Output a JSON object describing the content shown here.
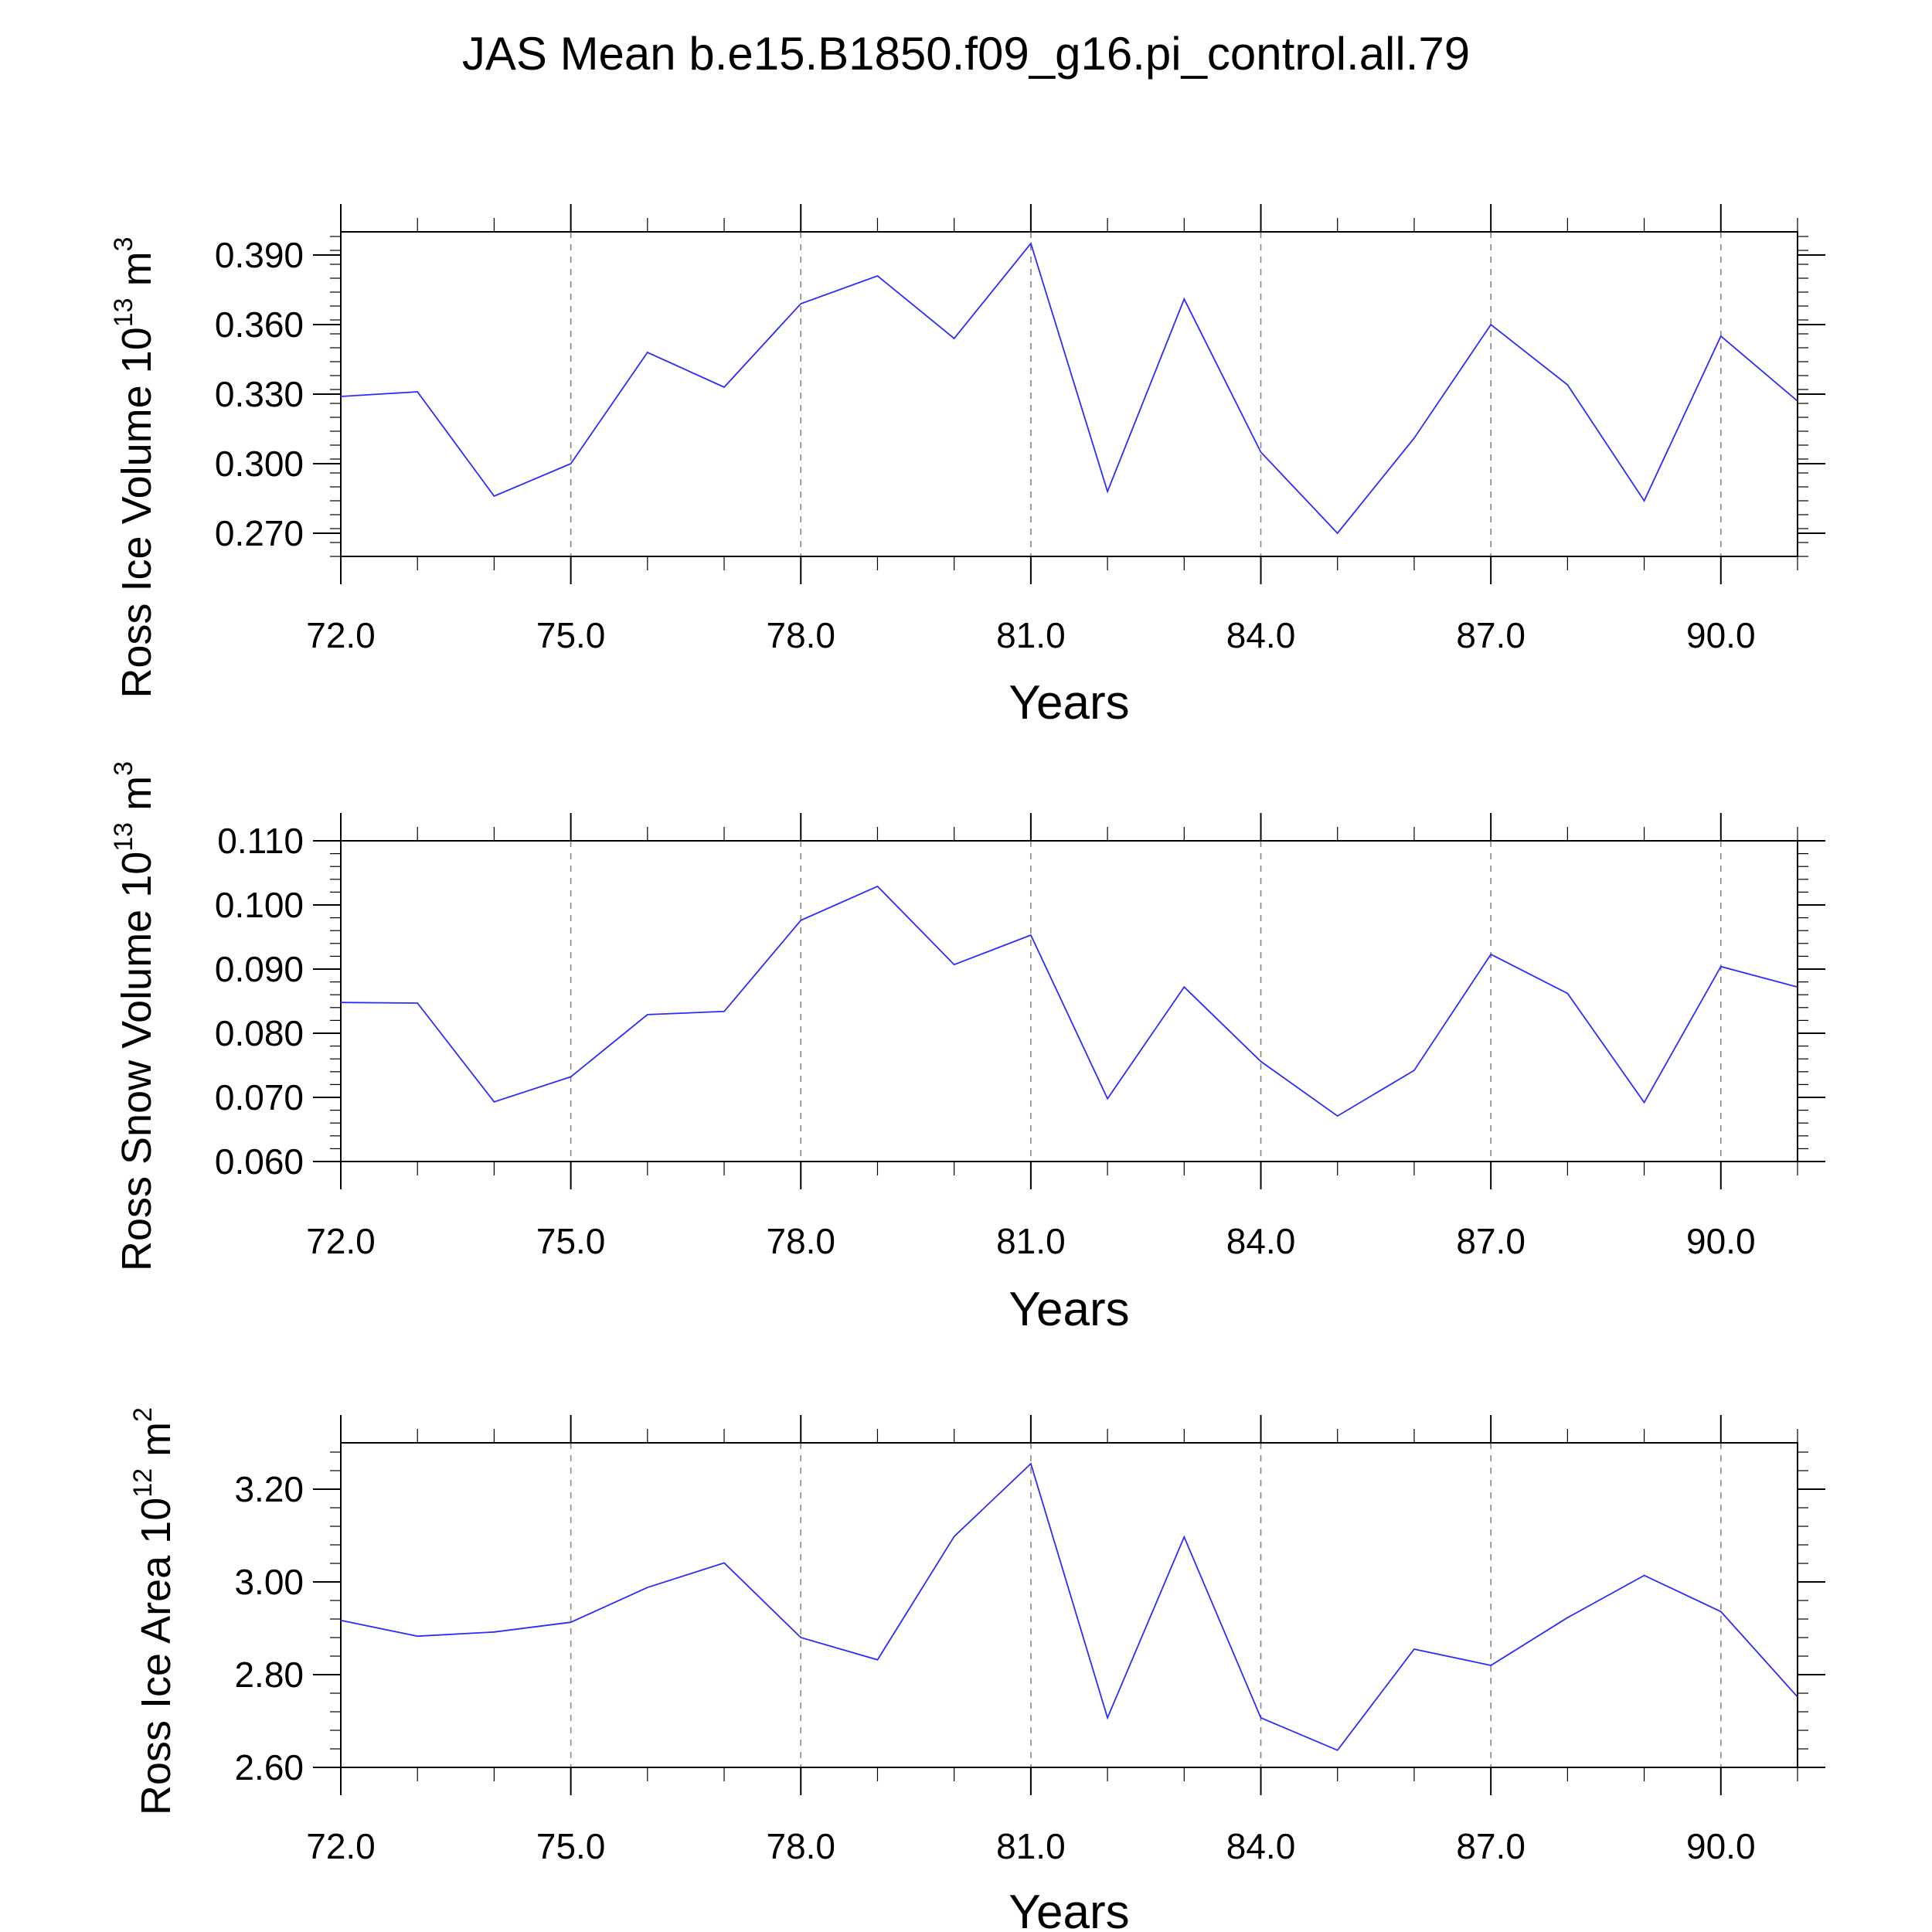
{
  "title": "JAS Mean b.e15.B1850.f09_g16.pi_control.all.79",
  "chart_data": [
    {
      "type": "line",
      "xlabel": "Years",
      "ylabel": "Ross Ice Volume 10",
      "ylabel_exp": "13",
      "ylabel_unit": " m",
      "ylabel_unit_exp": "3",
      "xlim": [
        72,
        91
      ],
      "ylim": [
        0.26,
        0.4
      ],
      "xticks": [
        72,
        75,
        78,
        81,
        84,
        87,
        90
      ],
      "xtick_labels": [
        "72.0",
        "75.0",
        "78.0",
        "81.0",
        "84.0",
        "87.0",
        "90.0"
      ],
      "yticks": [
        0.27,
        0.3,
        0.33,
        0.36,
        0.39
      ],
      "ytick_labels": [
        "0.270",
        "0.300",
        "0.330",
        "0.360",
        "0.390"
      ],
      "grid": "x-dashed",
      "series": [
        {
          "name": "Ross Ice Volume",
          "color": "#2b2bff",
          "x": [
            72,
            73,
            74,
            75,
            76,
            77,
            78,
            79,
            80,
            81,
            82,
            83,
            84,
            85,
            86,
            87,
            88,
            89,
            90,
            91
          ],
          "values": [
            0.329,
            0.331,
            0.286,
            0.3,
            0.348,
            0.333,
            0.369,
            0.381,
            0.354,
            0.395,
            0.288,
            0.371,
            0.305,
            0.27,
            0.311,
            0.36,
            0.334,
            0.284,
            0.355,
            0.327
          ]
        }
      ]
    },
    {
      "type": "line",
      "xlabel": "Years",
      "ylabel": "Ross Snow Volume 10",
      "ylabel_exp": "13",
      "ylabel_unit": " m",
      "ylabel_unit_exp": "3",
      "xlim": [
        72,
        91
      ],
      "ylim": [
        0.06,
        0.11
      ],
      "xticks": [
        72,
        75,
        78,
        81,
        84,
        87,
        90
      ],
      "xtick_labels": [
        "72.0",
        "75.0",
        "78.0",
        "81.0",
        "84.0",
        "87.0",
        "90.0"
      ],
      "yticks": [
        0.06,
        0.07,
        0.08,
        0.09,
        0.1,
        0.11
      ],
      "ytick_labels": [
        "0.060",
        "0.070",
        "0.080",
        "0.090",
        "0.100",
        "0.110"
      ],
      "grid": "x-dashed",
      "series": [
        {
          "name": "Ross Snow Volume",
          "color": "#2b2bff",
          "x": [
            72,
            73,
            74,
            75,
            76,
            77,
            78,
            79,
            80,
            81,
            82,
            83,
            84,
            85,
            86,
            87,
            88,
            89,
            90,
            91
          ],
          "values": [
            0.0848,
            0.0847,
            0.0693,
            0.0732,
            0.0829,
            0.0834,
            0.0976,
            0.1029,
            0.0907,
            0.0953,
            0.0698,
            0.0872,
            0.0756,
            0.0671,
            0.0742,
            0.0923,
            0.0862,
            0.0692,
            0.0904,
            0.0872
          ]
        }
      ]
    },
    {
      "type": "line",
      "xlabel": "Years",
      "ylabel": "Ross Ice Area 10",
      "ylabel_exp": "12",
      "ylabel_unit": " m",
      "ylabel_unit_exp": "2",
      "xlim": [
        72,
        91
      ],
      "ylim": [
        2.6,
        3.3
      ],
      "xticks": [
        72,
        75,
        78,
        81,
        84,
        87,
        90
      ],
      "xtick_labels": [
        "72.0",
        "75.0",
        "78.0",
        "81.0",
        "84.0",
        "87.0",
        "90.0"
      ],
      "yticks": [
        2.6,
        2.8,
        3.0,
        3.2
      ],
      "ytick_labels": [
        "2.60",
        "2.80",
        "3.00",
        "3.20"
      ],
      "grid": "x-dashed",
      "series": [
        {
          "name": "Ross Ice Area",
          "color": "#2b2bff",
          "x": [
            72,
            73,
            74,
            75,
            76,
            77,
            78,
            79,
            80,
            81,
            82,
            83,
            84,
            85,
            86,
            87,
            88,
            89,
            90,
            91
          ],
          "values": [
            2.917,
            2.883,
            2.892,
            2.913,
            2.988,
            3.041,
            2.88,
            2.832,
            3.098,
            3.255,
            2.707,
            3.097,
            2.707,
            2.637,
            2.855,
            2.82,
            2.923,
            3.014,
            2.936,
            2.752
          ]
        }
      ]
    }
  ]
}
